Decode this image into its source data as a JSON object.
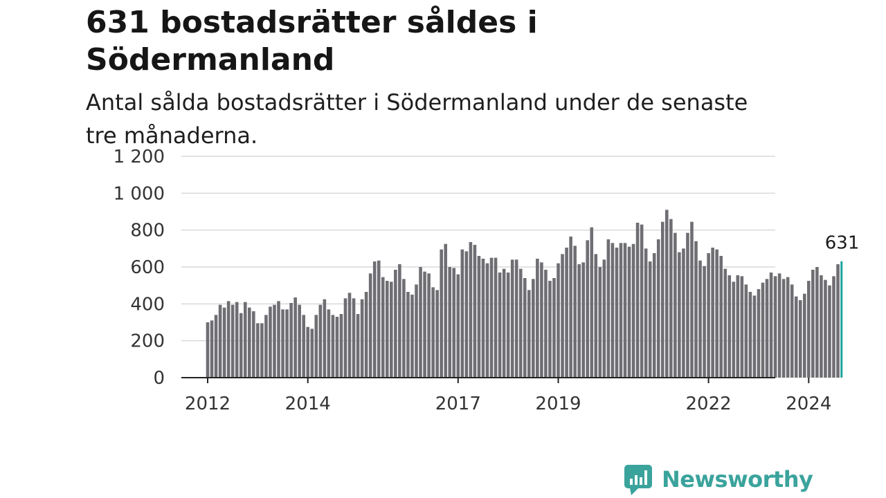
{
  "title": "631 bostadsrätter såldes i Södermanland",
  "subtitle": "Antal sålda bostadsrätter i Södermanland under de senaste tre månaderna.",
  "brand": {
    "name": "Newsworthy",
    "logo_icon": "newsworthy-bar-chart-icon"
  },
  "colors": {
    "bar": "#6f6e73",
    "highlight": "#1aa39a",
    "grid": "#d9d9d9",
    "axis": "#222222"
  },
  "chart_data": {
    "type": "bar",
    "title": "631 bostadsrätter såldes i Södermanland",
    "subtitle": "Antal sålda bostadsrätter i Södermanland under de senaste tre månaderna.",
    "xlabel": "",
    "ylabel": "",
    "ylim": [
      0,
      1200
    ],
    "yticks": [
      0,
      200,
      400,
      600,
      800,
      1000,
      1200
    ],
    "ytick_labels": [
      "0",
      "200",
      "400",
      "600",
      "800",
      "1 000",
      "1 200"
    ],
    "xtick_labels": [
      "2012",
      "2014",
      "2017",
      "2019",
      "2022",
      "2024"
    ],
    "grid": true,
    "start": "2012-01",
    "frequency": "monthly",
    "highlight_last": true,
    "annotation": {
      "text": "631",
      "target": "last"
    },
    "values": [
      300,
      310,
      340,
      395,
      380,
      415,
      395,
      410,
      350,
      410,
      380,
      360,
      295,
      295,
      340,
      385,
      395,
      415,
      370,
      370,
      405,
      435,
      395,
      340,
      275,
      265,
      340,
      395,
      425,
      370,
      340,
      330,
      345,
      430,
      460,
      430,
      345,
      425,
      465,
      565,
      630,
      635,
      545,
      525,
      520,
      585,
      615,
      535,
      465,
      450,
      505,
      600,
      575,
      565,
      490,
      475,
      695,
      725,
      600,
      595,
      560,
      695,
      685,
      735,
      720,
      660,
      645,
      620,
      650,
      650,
      570,
      590,
      570,
      640,
      640,
      590,
      540,
      475,
      535,
      645,
      625,
      585,
      525,
      540,
      620,
      670,
      705,
      765,
      715,
      615,
      625,
      745,
      815,
      670,
      600,
      640,
      750,
      730,
      705,
      730,
      730,
      710,
      725,
      840,
      830,
      700,
      630,
      675,
      750,
      845,
      910,
      860,
      785,
      680,
      700,
      785,
      845,
      740,
      635,
      605,
      675,
      705,
      695,
      660,
      590,
      555,
      520,
      555,
      550,
      505,
      465,
      445,
      480,
      515,
      535,
      570,
      550,
      565,
      535,
      545,
      505,
      440,
      420,
      455,
      525,
      585,
      600,
      555,
      530,
      500,
      550,
      615,
      631
    ]
  }
}
